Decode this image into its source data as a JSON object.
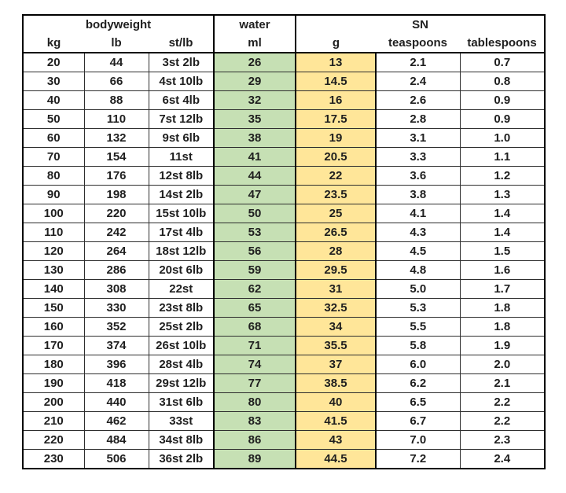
{
  "table": {
    "header_groups": [
      {
        "label": "bodyweight",
        "span": 3
      },
      {
        "label": "water",
        "span": 1
      },
      {
        "label": "SN",
        "span": 3
      }
    ],
    "columns": [
      "kg",
      "lb",
      "st/lb",
      "ml",
      "g",
      "teaspoons",
      "tablespoons"
    ],
    "rows": [
      [
        "20",
        "44",
        "3st 2lb",
        "26",
        "13",
        "2.1",
        "0.7"
      ],
      [
        "30",
        "66",
        "4st 10lb",
        "29",
        "14.5",
        "2.4",
        "0.8"
      ],
      [
        "40",
        "88",
        "6st 4lb",
        "32",
        "16",
        "2.6",
        "0.9"
      ],
      [
        "50",
        "110",
        "7st 12lb",
        "35",
        "17.5",
        "2.8",
        "0.9"
      ],
      [
        "60",
        "132",
        "9st 6lb",
        "38",
        "19",
        "3.1",
        "1.0"
      ],
      [
        "70",
        "154",
        "11st",
        "41",
        "20.5",
        "3.3",
        "1.1"
      ],
      [
        "80",
        "176",
        "12st 8lb",
        "44",
        "22",
        "3.6",
        "1.2"
      ],
      [
        "90",
        "198",
        "14st 2lb",
        "47",
        "23.5",
        "3.8",
        "1.3"
      ],
      [
        "100",
        "220",
        "15st 10lb",
        "50",
        "25",
        "4.1",
        "1.4"
      ],
      [
        "110",
        "242",
        "17st 4lb",
        "53",
        "26.5",
        "4.3",
        "1.4"
      ],
      [
        "120",
        "264",
        "18st 12lb",
        "56",
        "28",
        "4.5",
        "1.5"
      ],
      [
        "130",
        "286",
        "20st 6lb",
        "59",
        "29.5",
        "4.8",
        "1.6"
      ],
      [
        "140",
        "308",
        "22st",
        "62",
        "31",
        "5.0",
        "1.7"
      ],
      [
        "150",
        "330",
        "23st 8lb",
        "65",
        "32.5",
        "5.3",
        "1.8"
      ],
      [
        "160",
        "352",
        "25st 2lb",
        "68",
        "34",
        "5.5",
        "1.8"
      ],
      [
        "170",
        "374",
        "26st 10lb",
        "71",
        "35.5",
        "5.8",
        "1.9"
      ],
      [
        "180",
        "396",
        "28st 4lb",
        "74",
        "37",
        "6.0",
        "2.0"
      ],
      [
        "190",
        "418",
        "29st 12lb",
        "77",
        "38.5",
        "6.2",
        "2.1"
      ],
      [
        "200",
        "440",
        "31st 6lb",
        "80",
        "40",
        "6.5",
        "2.2"
      ],
      [
        "210",
        "462",
        "33st",
        "83",
        "41.5",
        "6.7",
        "2.2"
      ],
      [
        "220",
        "484",
        "34st 8lb",
        "86",
        "43",
        "7.0",
        "2.3"
      ],
      [
        "230",
        "506",
        "36st 2lb",
        "89",
        "44.5",
        "7.2",
        "2.4"
      ]
    ],
    "colors": {
      "water_fill": "#c6e0b4",
      "g_fill": "#ffe699",
      "border": "#000000",
      "text": "#1f1f1f"
    }
  },
  "chart_data": {
    "type": "table",
    "title": "",
    "column_groups": [
      "bodyweight",
      "bodyweight",
      "bodyweight",
      "water",
      "SN",
      "SN",
      "SN"
    ],
    "columns": [
      "kg",
      "lb",
      "st/lb",
      "ml",
      "g",
      "teaspoons",
      "tablespoons"
    ],
    "rows": [
      [
        "20",
        "44",
        "3st 2lb",
        "26",
        "13",
        "2.1",
        "0.7"
      ],
      [
        "30",
        "66",
        "4st 10lb",
        "29",
        "14.5",
        "2.4",
        "0.8"
      ],
      [
        "40",
        "88",
        "6st 4lb",
        "32",
        "16",
        "2.6",
        "0.9"
      ],
      [
        "50",
        "110",
        "7st 12lb",
        "35",
        "17.5",
        "2.8",
        "0.9"
      ],
      [
        "60",
        "132",
        "9st 6lb",
        "38",
        "19",
        "3.1",
        "1.0"
      ],
      [
        "70",
        "154",
        "11st",
        "41",
        "20.5",
        "3.3",
        "1.1"
      ],
      [
        "80",
        "176",
        "12st 8lb",
        "44",
        "22",
        "3.6",
        "1.2"
      ],
      [
        "90",
        "198",
        "14st 2lb",
        "47",
        "23.5",
        "3.8",
        "1.3"
      ],
      [
        "100",
        "220",
        "15st 10lb",
        "50",
        "25",
        "4.1",
        "1.4"
      ],
      [
        "110",
        "242",
        "17st 4lb",
        "53",
        "26.5",
        "4.3",
        "1.4"
      ],
      [
        "120",
        "264",
        "18st 12lb",
        "56",
        "28",
        "4.5",
        "1.5"
      ],
      [
        "130",
        "286",
        "20st 6lb",
        "59",
        "29.5",
        "4.8",
        "1.6"
      ],
      [
        "140",
        "308",
        "22st",
        "62",
        "31",
        "5.0",
        "1.7"
      ],
      [
        "150",
        "330",
        "23st 8lb",
        "65",
        "32.5",
        "5.3",
        "1.8"
      ],
      [
        "160",
        "352",
        "25st 2lb",
        "68",
        "34",
        "5.5",
        "1.8"
      ],
      [
        "170",
        "374",
        "26st 10lb",
        "71",
        "35.5",
        "5.8",
        "1.9"
      ],
      [
        "180",
        "396",
        "28st 4lb",
        "74",
        "37",
        "6.0",
        "2.0"
      ],
      [
        "190",
        "418",
        "29st 12lb",
        "77",
        "38.5",
        "6.2",
        "2.1"
      ],
      [
        "200",
        "440",
        "31st 6lb",
        "80",
        "40",
        "6.5",
        "2.2"
      ],
      [
        "210",
        "462",
        "33st",
        "83",
        "41.5",
        "6.7",
        "2.2"
      ],
      [
        "220",
        "484",
        "34st 8lb",
        "86",
        "43",
        "7.0",
        "2.3"
      ],
      [
        "230",
        "506",
        "36st 2lb",
        "89",
        "44.5",
        "7.2",
        "2.4"
      ]
    ]
  }
}
